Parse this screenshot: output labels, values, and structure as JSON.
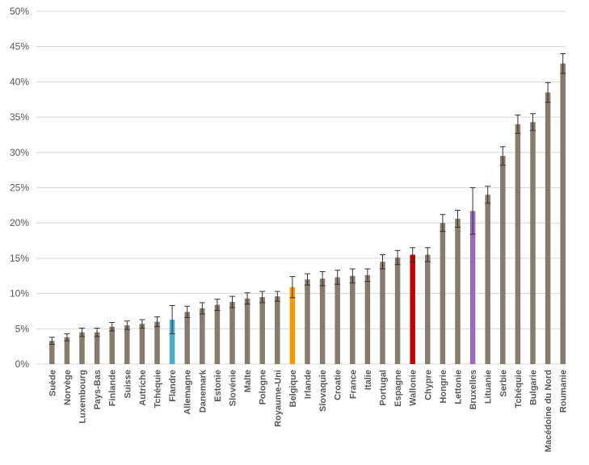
{
  "chart_data": {
    "type": "bar",
    "title": "",
    "xlabel": "",
    "ylabel": "",
    "ylim": [
      0,
      50
    ],
    "yticks": [
      0,
      5,
      10,
      15,
      20,
      25,
      30,
      35,
      40,
      45,
      50
    ],
    "ytick_suffix": "%",
    "grid": true,
    "legend": "none",
    "default_color": "#857b6f",
    "categories": [
      "Suède",
      "Norvège",
      "Luxembourg",
      "Pays-Bas",
      "Finlande",
      "Suisse",
      "Autriche",
      "Tchéquie",
      "Flandre",
      "Allemagne",
      "Danemark",
      "Estonie",
      "Slovénie",
      "Malte",
      "Pologne",
      "Royaume-Uni",
      "Belgique",
      "Irlande",
      "Slovaquie",
      "Croatie",
      "France",
      "Italie",
      "Portugal",
      "Espagne",
      "Wallonie",
      "Chypre",
      "Hongrie",
      "Lettonie",
      "Bruxelles",
      "Lituanie",
      "Serbie",
      "Tchéquie",
      "Bulgarie",
      "Macédoine du Nord",
      "Roumanie"
    ],
    "values": [
      3.3,
      3.8,
      4.5,
      4.5,
      5.3,
      5.5,
      5.7,
      6.0,
      6.3,
      7.4,
      7.9,
      8.4,
      8.8,
      9.3,
      9.5,
      9.6,
      10.9,
      12.0,
      12.1,
      12.3,
      12.5,
      12.6,
      14.5,
      15.1,
      15.5,
      15.5,
      20.0,
      20.6,
      21.7,
      24.0,
      29.5,
      34.0,
      34.3,
      38.5,
      42.6
    ],
    "errors": [
      0.5,
      0.5,
      0.6,
      0.6,
      0.6,
      0.6,
      0.6,
      0.7,
      2.0,
      0.8,
      0.8,
      0.8,
      0.8,
      0.8,
      0.8,
      0.7,
      1.5,
      0.8,
      1.0,
      1.0,
      1.0,
      0.9,
      1.0,
      1.0,
      1.0,
      1.0,
      1.2,
      1.2,
      3.3,
      1.2,
      1.3,
      1.3,
      1.2,
      1.4,
      1.4
    ],
    "highlight_colors": {
      "8": "#4bacc6",
      "16": "#f59b00",
      "24": "#c00000",
      "28": "#9b6ab5"
    }
  }
}
